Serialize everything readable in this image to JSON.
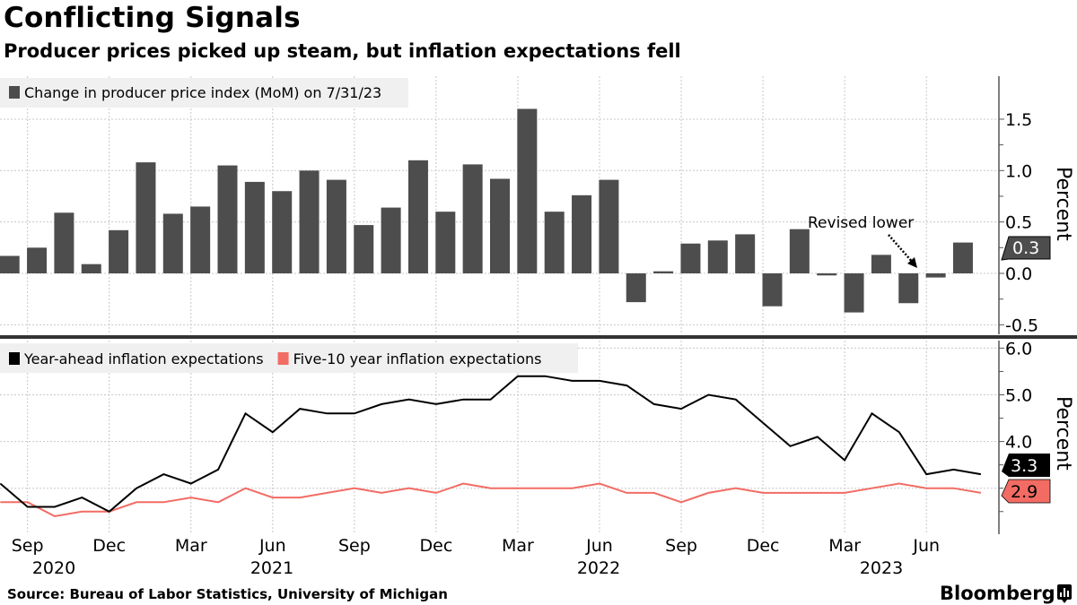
{
  "header": {
    "title": "Conflicting Signals",
    "subtitle": "Producer prices picked up steam, but inflation expectations fell"
  },
  "footer": {
    "source": "Source: Bureau of Labor Statistics, University of Michigan",
    "brand": "Bloomberg"
  },
  "colors": {
    "bar": "#4d4d4d",
    "year_ahead": "#000000",
    "five_10": "#f26c64",
    "legend_bg": "#f0f0f0"
  },
  "chart_data": [
    {
      "type": "bar",
      "title": "Change in producer price index (MoM) on 7/31/23",
      "legend": "Change in producer price index (MoM) on 7/31/23",
      "legend_placement": "top-left",
      "ylabel": "Percent",
      "ylim": [
        -0.6,
        1.9
      ],
      "yticks": [
        "1.5",
        "1.0",
        "0.5",
        "0.0",
        "-0.5"
      ],
      "grid": true,
      "x": [
        "2020-08",
        "2020-09",
        "2020-10",
        "2020-11",
        "2020-12",
        "2021-01",
        "2021-02",
        "2021-03",
        "2021-04",
        "2021-05",
        "2021-06",
        "2021-07",
        "2021-08",
        "2021-09",
        "2021-10",
        "2021-11",
        "2021-12",
        "2022-01",
        "2022-02",
        "2022-03",
        "2022-04",
        "2022-05",
        "2022-06",
        "2022-07",
        "2022-08",
        "2022-09",
        "2022-10",
        "2022-11",
        "2022-12",
        "2023-01",
        "2023-02",
        "2023-03",
        "2023-04",
        "2023-05",
        "2023-06",
        "2023-07"
      ],
      "values": [
        0.17,
        0.25,
        0.59,
        0.09,
        0.42,
        1.08,
        0.58,
        0.65,
        1.05,
        0.89,
        0.8,
        1.0,
        0.91,
        0.47,
        0.64,
        1.1,
        0.6,
        1.06,
        0.92,
        1.6,
        0.6,
        0.76,
        0.91,
        -0.28,
        0.02,
        0.29,
        0.32,
        0.38,
        -0.32,
        0.43,
        -0.02,
        -0.38,
        0.18,
        -0.29,
        -0.04,
        0.3
      ],
      "last_value_label": "0.3",
      "annotation": "Revised lower"
    },
    {
      "type": "line",
      "ylabel": "Percent",
      "ylim": [
        2.0,
        6.1
      ],
      "yticks": [
        "6.0",
        "5.0",
        "4.0"
      ],
      "grid": true,
      "legend_placement": "top-left",
      "x": [
        "2020-08",
        "2020-09",
        "2020-10",
        "2020-11",
        "2020-12",
        "2021-01",
        "2021-02",
        "2021-03",
        "2021-04",
        "2021-05",
        "2021-06",
        "2021-07",
        "2021-08",
        "2021-09",
        "2021-10",
        "2021-11",
        "2021-12",
        "2022-01",
        "2022-02",
        "2022-03",
        "2022-04",
        "2022-05",
        "2022-06",
        "2022-07",
        "2022-08",
        "2022-09",
        "2022-10",
        "2022-11",
        "2022-12",
        "2023-01",
        "2023-02",
        "2023-03",
        "2023-04",
        "2023-05",
        "2023-06",
        "2023-07",
        "2023-08"
      ],
      "series": [
        {
          "name": "Year-ahead inflation expectations",
          "last_label": "3.3",
          "values": [
            3.1,
            2.6,
            2.6,
            2.8,
            2.5,
            3.0,
            3.3,
            3.1,
            3.4,
            4.6,
            4.2,
            4.7,
            4.6,
            4.6,
            4.8,
            4.9,
            4.8,
            4.9,
            4.9,
            5.4,
            5.4,
            5.3,
            5.3,
            5.2,
            4.8,
            4.7,
            5.0,
            4.9,
            4.4,
            3.9,
            4.1,
            3.6,
            4.6,
            4.2,
            3.3,
            3.4,
            3.3
          ]
        },
        {
          "name": "Five-10 year inflation expectations",
          "last_label": "2.9",
          "values": [
            2.7,
            2.7,
            2.4,
            2.5,
            2.5,
            2.7,
            2.7,
            2.8,
            2.7,
            3.0,
            2.8,
            2.8,
            2.9,
            3.0,
            2.9,
            3.0,
            2.9,
            3.1,
            3.0,
            3.0,
            3.0,
            3.0,
            3.1,
            2.9,
            2.9,
            2.7,
            2.9,
            3.0,
            2.9,
            2.9,
            2.9,
            2.9,
            3.0,
            3.1,
            3.0,
            3.0,
            2.9
          ]
        }
      ],
      "xticks": [
        "Sep",
        "Dec",
        "Mar",
        "Jun",
        "Sep",
        "Dec",
        "Mar",
        "Jun",
        "Sep",
        "Dec",
        "Mar",
        "Jun"
      ],
      "years": [
        "2020",
        "2021",
        "2022",
        "2023"
      ]
    }
  ]
}
